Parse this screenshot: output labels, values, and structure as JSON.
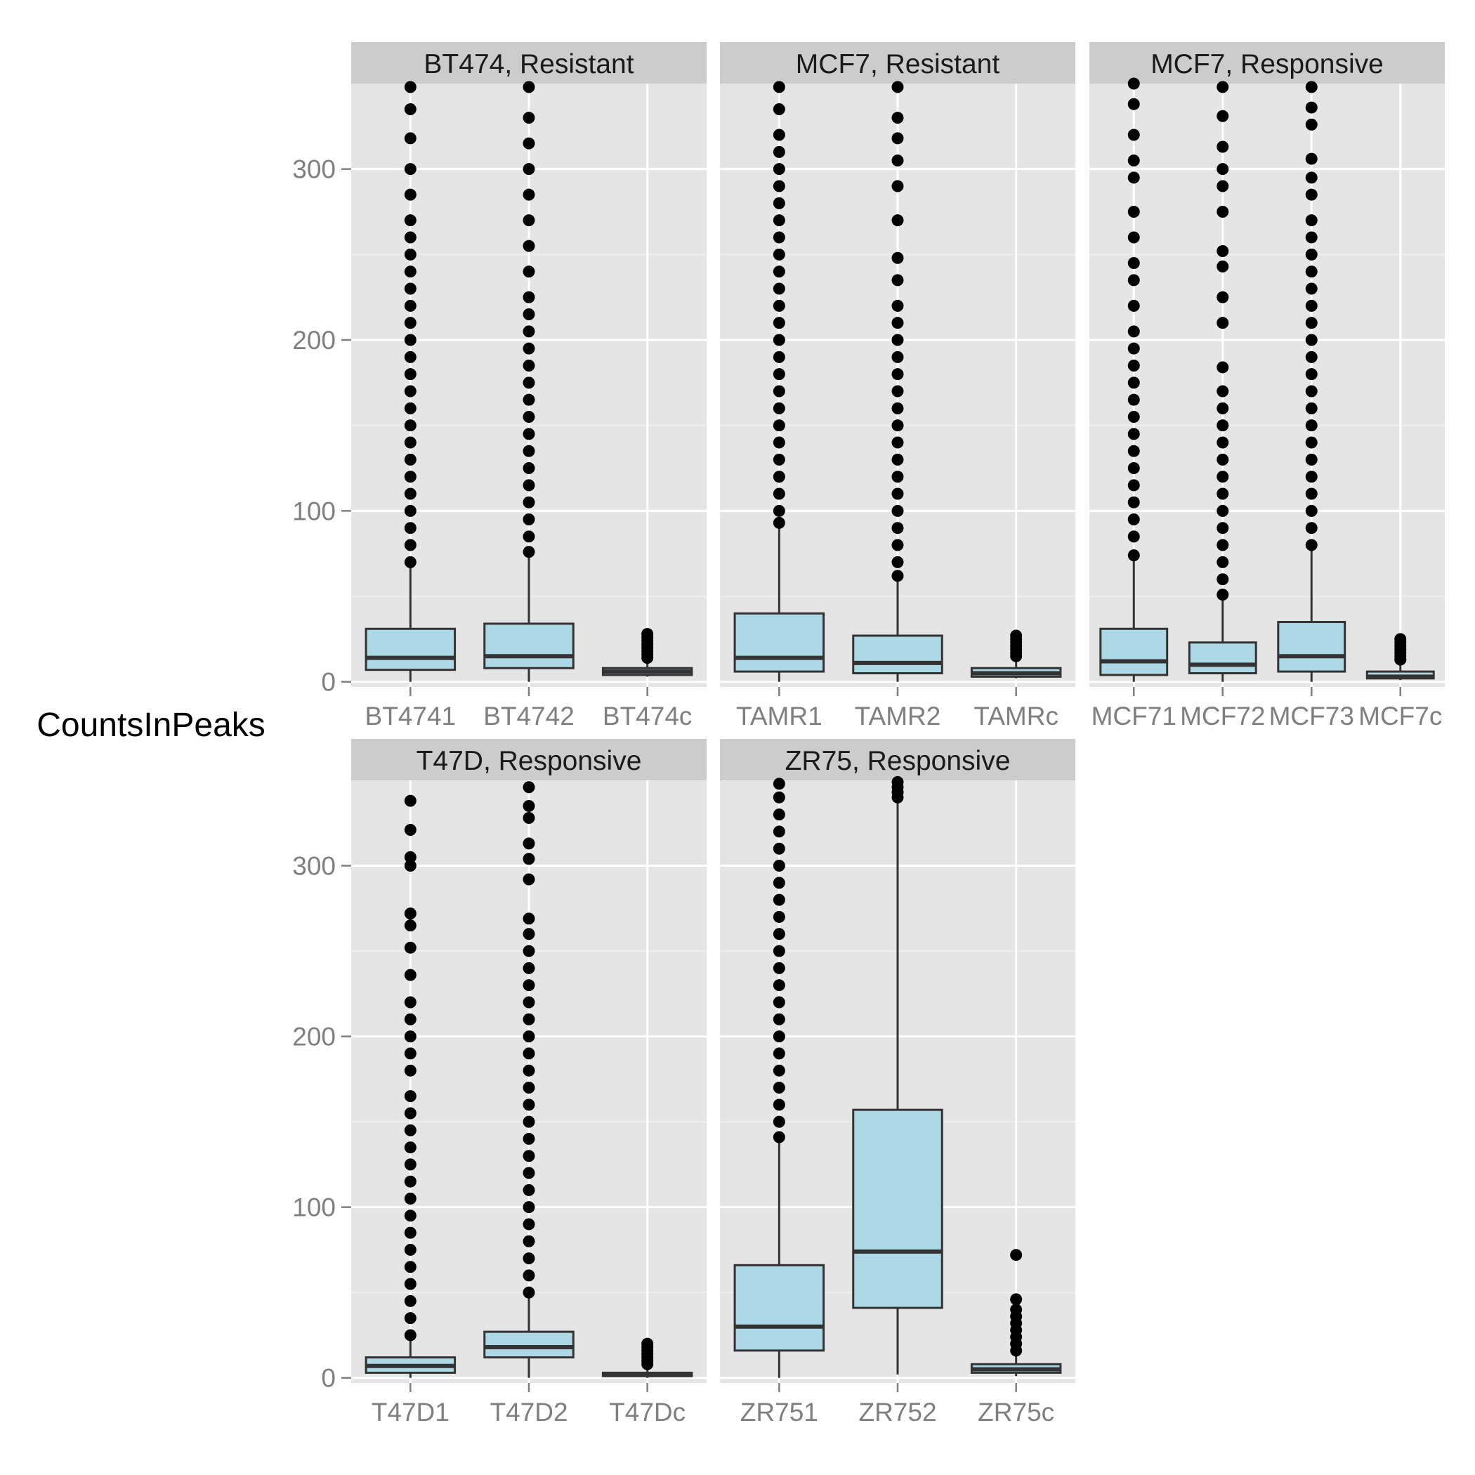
{
  "chart_data": {
    "type": "boxplot",
    "facet_layout": "3 columns x 2 rows",
    "ylabel": "CountsInPeaks",
    "xlabel": "",
    "ylim": [
      -3,
      350
    ],
    "yticks": [
      0,
      100,
      200,
      300
    ],
    "colors": {
      "panel_bg": "#e5e5e5",
      "strip_bg": "#cccccc",
      "grid": "#ffffff",
      "box_fill": "#add8e6",
      "box_line": "#333333",
      "outlier": "#000000"
    },
    "panels": [
      {
        "title": "BT474, Resistant",
        "boxes": [
          {
            "label": "BT4741",
            "whisker_low": 0,
            "q1": 7,
            "median": 14,
            "q3": 31,
            "whisker_high": 67,
            "outliers": [
              70,
              80,
              90,
              100,
              110,
              120,
              130,
              140,
              150,
              160,
              170,
              180,
              190,
              200,
              210,
              220,
              230,
              240,
              250,
              260,
              270,
              285,
              300,
              318,
              335,
              348
            ]
          },
          {
            "label": "BT4742",
            "whisker_low": 0,
            "q1": 8,
            "median": 15,
            "q3": 34,
            "whisker_high": 73,
            "outliers": [
              76,
              85,
              95,
              105,
              115,
              125,
              135,
              145,
              155,
              165,
              175,
              185,
              195,
              205,
              215,
              225,
              240,
              255,
              270,
              285,
              300,
              315,
              330,
              348
            ]
          },
          {
            "label": "BT474c",
            "whisker_low": 3,
            "q1": 4,
            "median": 6,
            "q3": 8,
            "whisker_high": 12,
            "outliers": [
              14,
              16,
              18,
              20,
              22,
              24,
              26,
              28
            ]
          }
        ]
      },
      {
        "title": "MCF7, Resistant",
        "boxes": [
          {
            "label": "TAMR1",
            "whisker_low": 0,
            "q1": 6,
            "median": 14,
            "q3": 40,
            "whisker_high": 90,
            "outliers": [
              93,
              100,
              110,
              120,
              130,
              140,
              150,
              160,
              170,
              180,
              190,
              200,
              210,
              220,
              230,
              240,
              250,
              260,
              270,
              280,
              290,
              300,
              310,
              320,
              335,
              348
            ]
          },
          {
            "label": "TAMR2",
            "whisker_low": 0,
            "q1": 5,
            "median": 11,
            "q3": 27,
            "whisker_high": 60,
            "outliers": [
              62,
              70,
              80,
              90,
              100,
              110,
              120,
              130,
              140,
              150,
              160,
              170,
              180,
              190,
              200,
              210,
              220,
              235,
              248,
              270,
              290,
              305,
              318,
              330,
              348
            ]
          },
          {
            "label": "TAMRc",
            "whisker_low": 2,
            "q1": 3,
            "median": 5,
            "q3": 8,
            "whisker_high": 12,
            "outliers": [
              15,
              17,
              19,
              21,
              23,
              25,
              27
            ]
          }
        ]
      },
      {
        "title": "MCF7, Responsive",
        "boxes": [
          {
            "label": "MCF71",
            "whisker_low": 0,
            "q1": 4,
            "median": 12,
            "q3": 31,
            "whisker_high": 71,
            "outliers": [
              74,
              85,
              95,
              105,
              115,
              125,
              135,
              145,
              155,
              165,
              175,
              185,
              195,
              205,
              220,
              235,
              245,
              260,
              275,
              295,
              305,
              320,
              338,
              350
            ]
          },
          {
            "label": "MCF72",
            "whisker_low": 0,
            "q1": 5,
            "median": 10,
            "q3": 23,
            "whisker_high": 49,
            "outliers": [
              51,
              60,
              70,
              80,
              90,
              100,
              110,
              120,
              130,
              140,
              150,
              160,
              170,
              184,
              210,
              225,
              243,
              252,
              275,
              290,
              300,
              313,
              331,
              348
            ]
          },
          {
            "label": "MCF73",
            "whisker_low": 0,
            "q1": 6,
            "median": 15,
            "q3": 35,
            "whisker_high": 78,
            "outliers": [
              80,
              90,
              100,
              110,
              120,
              130,
              140,
              150,
              160,
              170,
              180,
              190,
              200,
              210,
              220,
              230,
              240,
              250,
              260,
              270,
              285,
              295,
              306,
              326,
              336,
              348
            ]
          },
          {
            "label": "MCF7c",
            "whisker_low": 1,
            "q1": 2,
            "median": 3,
            "q3": 6,
            "whisker_high": 10,
            "outliers": [
              13,
              15,
              17,
              19,
              21,
              23,
              25
            ]
          }
        ]
      },
      {
        "title": "T47D, Responsive",
        "boxes": [
          {
            "label": "T47D1",
            "whisker_low": 0,
            "q1": 3,
            "median": 7,
            "q3": 12,
            "whisker_high": 23,
            "outliers": [
              25,
              35,
              45,
              55,
              65,
              75,
              85,
              95,
              105,
              115,
              125,
              135,
              145,
              155,
              165,
              180,
              190,
              200,
              210,
              220,
              236,
              252,
              265,
              272,
              300,
              305,
              321,
              338
            ]
          },
          {
            "label": "T47D2",
            "whisker_low": 0,
            "q1": 12,
            "median": 18,
            "q3": 27,
            "whisker_high": 48,
            "outliers": [
              50,
              60,
              70,
              80,
              90,
              100,
              110,
              120,
              130,
              140,
              150,
              160,
              170,
              180,
              190,
              200,
              210,
              220,
              230,
              240,
              250,
              260,
              269,
              292,
              304,
              313,
              328,
              335,
              346
            ]
          },
          {
            "label": "T47Dc",
            "whisker_low": 0,
            "q1": 1,
            "median": 2,
            "q3": 3,
            "whisker_high": 6,
            "outliers": [
              8,
              10,
              12,
              14,
              16,
              18,
              20
            ]
          }
        ]
      },
      {
        "title": "ZR75, Responsive",
        "boxes": [
          {
            "label": "ZR751",
            "whisker_low": 0,
            "q1": 16,
            "median": 30,
            "q3": 66,
            "whisker_high": 139,
            "outliers": [
              141,
              150,
              160,
              170,
              180,
              190,
              200,
              210,
              220,
              230,
              240,
              250,
              260,
              270,
              280,
              290,
              300,
              310,
              320,
              330,
              340,
              348
            ]
          },
          {
            "label": "ZR752",
            "whisker_low": 2,
            "q1": 41,
            "median": 74,
            "q3": 157,
            "whisker_high": 338,
            "outliers": [
              340,
              343,
              346,
              349
            ]
          },
          {
            "label": "ZR75c",
            "whisker_low": 1,
            "q1": 3,
            "median": 5,
            "q3": 8,
            "whisker_high": 14,
            "outliers": [
              16,
              20,
              24,
              28,
              32,
              36,
              40,
              46,
              72
            ]
          }
        ]
      }
    ]
  }
}
